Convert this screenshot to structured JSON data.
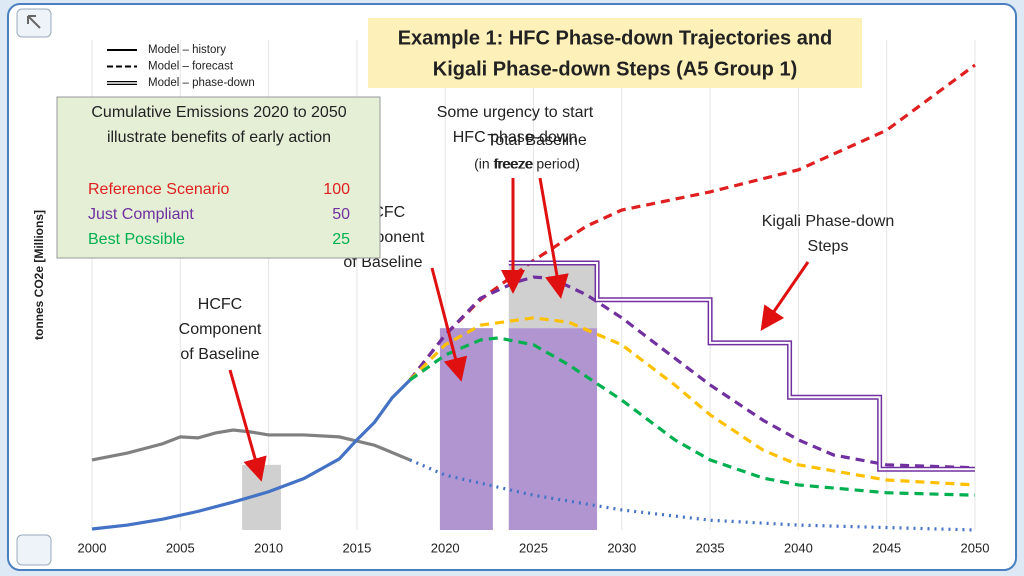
{
  "chart_data": {
    "type": "line",
    "title": [
      "Example 1: HFC Phase-down Trajectories and",
      "Kigali Phase-down Steps (A5 Group 1)"
    ],
    "y_label": "tonnes CO2e [Millions]",
    "xlim": [
      2000,
      2050
    ],
    "xticks": [
      2000,
      2005,
      2010,
      2015,
      2020,
      2025,
      2030,
      2035,
      2040,
      2045,
      2050
    ],
    "ylim": [
      0,
      100
    ],
    "grid": true,
    "style_legend": [
      {
        "label": "Model – history",
        "style": "solid"
      },
      {
        "label": "Model – forecast",
        "style": "dashed"
      },
      {
        "label": "Model – phase-down",
        "style": "double"
      }
    ],
    "bars": [
      {
        "x": [
          2008.5,
          2010.7
        ],
        "segments": [
          {
            "value": 13.3,
            "color": "#d0d0d0"
          }
        ]
      },
      {
        "x": [
          2019.7,
          2022.7
        ],
        "segments": [
          {
            "value": 41.2,
            "color": "#b095d0"
          }
        ]
      },
      {
        "x": [
          2023.6,
          2028.6
        ],
        "segments": [
          {
            "value": 41.2,
            "color": "#b095d0"
          },
          {
            "value": 12.8,
            "color": "#d0d0d0"
          }
        ]
      }
    ],
    "series": [
      {
        "color": "#808080",
        "style": "solid",
        "x": [
          2000,
          2002,
          2004,
          2005,
          2006,
          2007,
          2008,
          2009,
          2010,
          2012,
          2014,
          2016,
          2018
        ],
        "values": [
          14.3,
          15.7,
          17.6,
          19,
          18.8,
          19.8,
          20.4,
          20,
          19.4,
          19.4,
          19,
          17.3,
          14.3
        ]
      },
      {
        "color": "#4472c4",
        "style": "dotted",
        "x": [
          2018,
          2020,
          2025,
          2030,
          2035,
          2040,
          2050
        ],
        "values": [
          14.3,
          11.2,
          7.1,
          4.1,
          2,
          1,
          0
        ]
      },
      {
        "color": "#4472c4",
        "style": "solid",
        "x": [
          2000,
          2002,
          2004,
          2006,
          2008,
          2010,
          2012,
          2014,
          2015,
          2016,
          2017,
          2018
        ],
        "values": [
          0.2,
          1,
          2.2,
          3.8,
          5.7,
          7.8,
          10.5,
          14.5,
          18.4,
          22,
          27,
          30.6
        ]
      },
      {
        "name": "Reference Scenario",
        "cumulative": 100,
        "color": "#e02020",
        "style": "dashed",
        "x": [
          2018,
          2020,
          2022,
          2025,
          2028,
          2030,
          2035,
          2040,
          2045,
          2050
        ],
        "values": [
          30.6,
          39.8,
          47,
          55,
          62,
          65.3,
          69,
          73.5,
          81.6,
          94.9
        ]
      },
      {
        "name": "Just Compliant",
        "cumulative": 50,
        "color": "#7030a0",
        "style": "dashed",
        "x": [
          2018,
          2020,
          2022,
          2024,
          2025,
          2026,
          2028,
          2030,
          2032,
          2035,
          2038,
          2040,
          2042,
          2045,
          2050
        ],
        "values": [
          30.6,
          39.8,
          47.3,
          50.6,
          51.6,
          51.4,
          48,
          43.3,
          37.8,
          29.6,
          22.4,
          18.4,
          15.3,
          13.3,
          12.7
        ]
      },
      {
        "color": "#ffc000",
        "style": "dashed",
        "x": [
          2018,
          2020,
          2022,
          2025,
          2027,
          2030,
          2033,
          2035,
          2038,
          2040,
          2045,
          2050
        ],
        "values": [
          30.6,
          37.8,
          41.8,
          43.3,
          42.4,
          37.8,
          29.6,
          23.5,
          16.3,
          13.3,
          10.2,
          9.2
        ]
      },
      {
        "name": "Best Possible",
        "cumulative": 25,
        "color": "#00b050",
        "style": "dashed",
        "x": [
          2018,
          2020,
          2022,
          2023,
          2025,
          2027,
          2030,
          2033,
          2035,
          2038,
          2040,
          2045,
          2050
        ],
        "values": [
          30.6,
          35.7,
          38.8,
          39.2,
          37.8,
          33.7,
          26.5,
          18.4,
          14.3,
          10.6,
          9.2,
          7.6,
          7.1
        ]
      },
      {
        "color": "#7030a0",
        "style": "double",
        "x": [
          2023.6,
          2028.6,
          2028.6,
          2035,
          2035,
          2039.5,
          2039.5,
          2044.6,
          2044.6,
          2050
        ],
        "values": [
          54.5,
          54.5,
          47,
          47,
          38.2,
          38.2,
          27.1,
          27.1,
          12.4,
          12.4
        ]
      }
    ],
    "cumulative_box": [
      "Cumulative Emissions 2020 to 2050",
      "illustrate benefits of early action"
    ],
    "annotations": {
      "hcfc": [
        "HCFC",
        "Component",
        "of Baseline"
      ],
      "hcfc_hidden": [
        "HCFC",
        "Component",
        "of Baseline"
      ],
      "urgency": [
        "Some urgency to start",
        "HFC phase-down"
      ],
      "baseline": [
        "Total Baseline",
        "(in freeze period)"
      ],
      "freeze": "freeze",
      "kigali": [
        "Kigali Phase-down",
        "Steps"
      ]
    }
  }
}
